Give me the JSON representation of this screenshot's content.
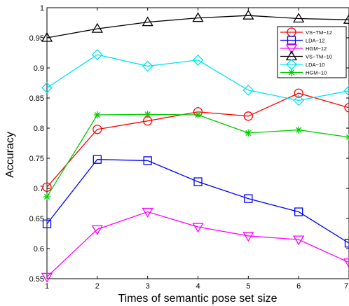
{
  "chart_data": {
    "type": "line",
    "xlabel": "Times of semantic pose set size",
    "ylabel": "Accuracy",
    "xlim": [
      1,
      7
    ],
    "ylim": [
      0.55,
      1
    ],
    "xticks": [
      "1",
      "2",
      "3",
      "4",
      "5",
      "6",
      "7"
    ],
    "yticks": [
      "0.55",
      "0.6",
      "0.65",
      "0.7",
      "0.75",
      "0.8",
      "0.85",
      "0.9",
      "0.95",
      "1"
    ],
    "ytick_values": [
      0.55,
      0.6,
      0.65,
      0.7,
      0.75,
      0.8,
      0.85,
      0.9,
      0.95,
      1.0
    ],
    "grid": false,
    "legend_position": "top-right",
    "x": [
      1,
      2,
      3,
      4,
      5,
      6,
      7
    ],
    "series": [
      {
        "name": "VS−TM−12",
        "color": "#ff0000",
        "marker": "circle",
        "values": [
          0.702,
          0.798,
          0.812,
          0.827,
          0.82,
          0.858,
          0.834
        ]
      },
      {
        "name": "LDA−12",
        "color": "#0000ff",
        "marker": "square",
        "values": [
          0.641,
          0.748,
          0.746,
          0.711,
          0.683,
          0.661,
          0.609
        ]
      },
      {
        "name": "HGM−12",
        "color": "#ff00ff",
        "marker": "triangle-down",
        "values": [
          0.553,
          0.632,
          0.661,
          0.636,
          0.621,
          0.615,
          0.577
        ]
      },
      {
        "name": "VS−TM−10",
        "color": "#000000",
        "marker": "triangle-up",
        "values": [
          0.95,
          0.965,
          0.976,
          0.983,
          0.987,
          0.982,
          0.98
        ]
      },
      {
        "name": "LDA−10",
        "color": "#00e5ee",
        "marker": "diamond",
        "values": [
          0.867,
          0.922,
          0.903,
          0.913,
          0.863,
          0.846,
          0.862
        ]
      },
      {
        "name": "HGM−10",
        "color": "#00cc00",
        "marker": "asterisk",
        "values": [
          0.686,
          0.822,
          0.823,
          0.822,
          0.792,
          0.797,
          0.785
        ]
      }
    ]
  }
}
